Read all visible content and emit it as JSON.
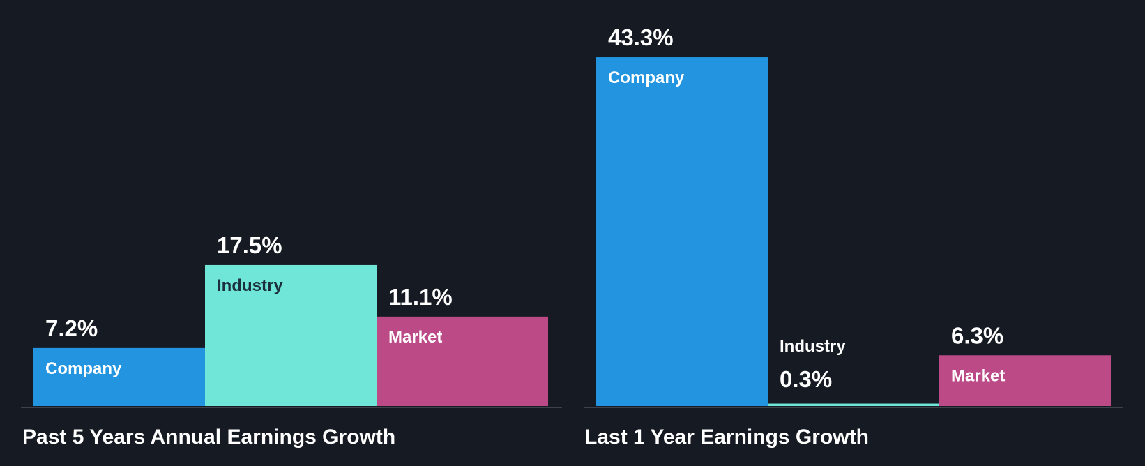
{
  "colors": {
    "background": "#161b23",
    "company": "#2394e0",
    "industry": "#6fe6d7",
    "market": "#bb4a87",
    "baseline": "#3e434b",
    "label_light": "#ffffff",
    "label_dark": "#1b2f3c"
  },
  "chart_data": [
    {
      "type": "bar",
      "title": "Past 5 Years Annual Earnings Growth",
      "categories": [
        "Company",
        "Industry",
        "Market"
      ],
      "values": [
        7.2,
        17.5,
        11.1
      ],
      "value_labels": [
        "7.2%",
        "17.5%",
        "11.1%"
      ],
      "grid": false
    },
    {
      "type": "bar",
      "title": "Last 1 Year Earnings Growth",
      "categories": [
        "Company",
        "Industry",
        "Market"
      ],
      "values": [
        43.3,
        0.3,
        6.3
      ],
      "value_labels": [
        "43.3%",
        "0.3%",
        "6.3%"
      ],
      "grid": false
    }
  ]
}
